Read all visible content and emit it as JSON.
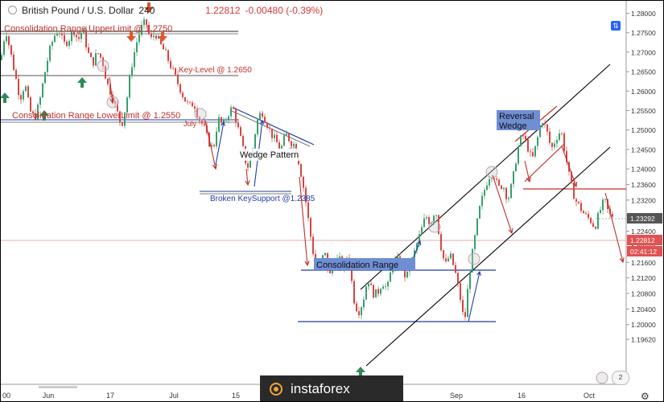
{
  "header": {
    "symbol": "British Pound / U.S. Dollar",
    "interval": "240",
    "last_price": "1.22812",
    "change": "-0.00480 (-0.39%)"
  },
  "watermark": "instaforex",
  "badge": "2",
  "colors": {
    "up_candle": "#3a9e6e",
    "down_candle": "#d64541",
    "annotation_red": "#c0302a",
    "annotation_blue": "#1f3ea8",
    "channel": "#000000",
    "price_tag": "#e35151",
    "current_tag": "#555555",
    "arrow_green": "#2e8b57",
    "arrow_orange": "#e0582e"
  },
  "chart_data": {
    "type": "candlestick",
    "ylim": [
      1.1962,
      1.281
    ],
    "price_axis_labels": [
      "1.28000",
      "1.27500",
      "1.27000",
      "1.26500",
      "1.26000",
      "1.25500",
      "1.25000",
      "1.24500",
      "1.24000",
      "1.23600",
      "1.23200",
      "1.22800",
      "1.22400",
      "1.22000",
      "1.21600",
      "1.21200",
      "1.20800",
      "1.20400",
      "1.20000",
      "1.19620"
    ],
    "time_axis_labels": [
      "00",
      "Jun",
      "17",
      "Jul",
      "15",
      "Sep",
      "16",
      "Oct"
    ],
    "current_price_tag": "1.23292",
    "last_price_tag": "1.22812",
    "countdown_tag": "02:41:12",
    "anchors": [
      [
        0,
        1.268
      ],
      [
        6,
        1.276
      ],
      [
        12,
        1.27
      ],
      [
        18,
        1.264
      ],
      [
        24,
        1.258
      ],
      [
        30,
        1.262
      ],
      [
        36,
        1.255
      ],
      [
        42,
        1.253
      ],
      [
        48,
        1.257
      ],
      [
        54,
        1.264
      ],
      [
        60,
        1.27
      ],
      [
        66,
        1.274
      ],
      [
        72,
        1.276
      ],
      [
        78,
        1.272
      ],
      [
        84,
        1.273
      ],
      [
        90,
        1.276
      ],
      [
        96,
        1.273
      ],
      [
        102,
        1.276
      ],
      [
        108,
        1.27
      ],
      [
        114,
        1.267
      ],
      [
        120,
        1.27
      ],
      [
        126,
        1.268
      ],
      [
        132,
        1.262
      ],
      [
        138,
        1.259
      ],
      [
        144,
        1.255
      ],
      [
        150,
        1.251
      ],
      [
        156,
        1.257
      ],
      [
        162,
        1.266
      ],
      [
        168,
        1.272
      ],
      [
        174,
        1.276
      ],
      [
        180,
        1.278
      ],
      [
        186,
        1.273
      ],
      [
        192,
        1.275
      ],
      [
        198,
        1.272
      ],
      [
        204,
        1.27
      ],
      [
        210,
        1.267
      ],
      [
        216,
        1.264
      ],
      [
        222,
        1.261
      ],
      [
        228,
        1.258
      ],
      [
        234,
        1.256
      ],
      [
        240,
        1.257
      ],
      [
        246,
        1.253
      ],
      [
        252,
        1.251
      ],
      [
        258,
        1.247
      ],
      [
        264,
        1.245
      ],
      [
        270,
        1.253
      ],
      [
        276,
        1.251
      ],
      [
        282,
        1.254
      ],
      [
        288,
        1.256
      ],
      [
        294,
        1.251
      ],
      [
        300,
        1.246
      ],
      [
        306,
        1.24
      ],
      [
        312,
        1.244
      ],
      [
        318,
        1.252
      ],
      [
        324,
        1.255
      ],
      [
        330,
        1.252
      ],
      [
        336,
        1.249
      ],
      [
        342,
        1.247
      ],
      [
        348,
        1.245
      ],
      [
        354,
        1.249
      ],
      [
        360,
        1.247
      ],
      [
        366,
        1.246
      ],
      [
        372,
        1.24
      ],
      [
        378,
        1.233
      ],
      [
        384,
        1.224
      ],
      [
        390,
        1.216
      ],
      [
        396,
        1.214
      ],
      [
        402,
        1.219
      ],
      [
        408,
        1.212
      ],
      [
        414,
        1.216
      ],
      [
        420,
        1.217
      ],
      [
        426,
        1.214
      ],
      [
        432,
        1.219
      ],
      [
        438,
        1.207
      ],
      [
        444,
        1.203
      ],
      [
        450,
        1.206
      ],
      [
        456,
        1.212
      ],
      [
        462,
        1.208
      ],
      [
        468,
        1.208
      ],
      [
        474,
        1.211
      ],
      [
        480,
        1.209
      ],
      [
        486,
        1.215
      ],
      [
        492,
        1.217
      ],
      [
        498,
        1.214
      ],
      [
        504,
        1.212
      ],
      [
        510,
        1.216
      ],
      [
        516,
        1.22
      ],
      [
        522,
        1.224
      ],
      [
        528,
        1.228
      ],
      [
        534,
        1.226
      ],
      [
        540,
        1.23
      ],
      [
        546,
        1.221
      ],
      [
        552,
        1.215
      ],
      [
        558,
        1.218
      ],
      [
        564,
        1.214
      ],
      [
        570,
        1.208
      ],
      [
        576,
        1.2
      ],
      [
        582,
        1.213
      ],
      [
        588,
        1.221
      ],
      [
        594,
        1.229
      ],
      [
        600,
        1.234
      ],
      [
        606,
        1.238
      ],
      [
        612,
        1.239
      ],
      [
        618,
        1.235
      ],
      [
        624,
        1.236
      ],
      [
        630,
        1.232
      ],
      [
        636,
        1.237
      ],
      [
        642,
        1.245
      ],
      [
        648,
        1.249
      ],
      [
        654,
        1.246
      ],
      [
        660,
        1.242
      ],
      [
        666,
        1.247
      ],
      [
        672,
        1.253
      ],
      [
        678,
        1.25
      ],
      [
        684,
        1.245
      ],
      [
        690,
        1.248
      ],
      [
        696,
        1.25
      ],
      [
        702,
        1.243
      ],
      [
        708,
        1.236
      ],
      [
        714,
        1.232
      ],
      [
        720,
        1.23
      ],
      [
        726,
        1.228
      ],
      [
        732,
        1.227
      ],
      [
        738,
        1.225
      ],
      [
        744,
        1.229
      ],
      [
        750,
        1.232
      ],
      [
        756,
        1.228
      ],
      [
        760,
        1.2281
      ]
    ]
  },
  "annotations": {
    "cr_upper": "Consolidation Range UpperLimit @ 1.2750",
    "cr_lower": "Consolidation Range LowerLimit @ 1.2550",
    "key_level": "Key-Level @ 1.2650",
    "july": "July",
    "wedge": "Wedge Pattern",
    "broken": "Broken KeySupport @1.2385",
    "consolidation": "Consolidation Range",
    "reversal_1": "Reversal",
    "reversal_2": "Wedge"
  }
}
